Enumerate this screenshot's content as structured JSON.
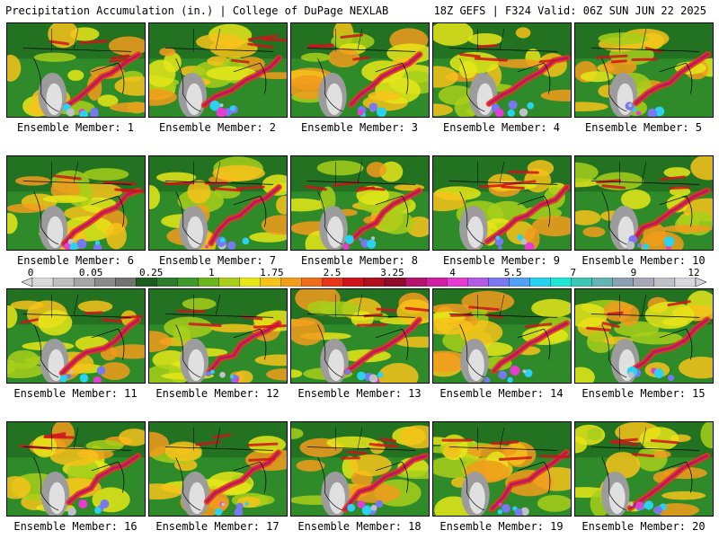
{
  "header": {
    "left_title": "Precipitation Accumulation (in.) | College of DuPage NEXLAB",
    "right_title": "18Z GEFS | F324 Valid: 06Z SUN JUN 22 2025"
  },
  "colorbar": {
    "tick_labels": [
      "0",
      "0.05",
      "0.25",
      "1",
      "1.75",
      "2.5",
      "3.25",
      "4",
      "5.5",
      "7",
      "9",
      "12"
    ],
    "colors": [
      "#d9d9d9",
      "#bfbfbf",
      "#a6a6a6",
      "#8c8c8c",
      "#737373",
      "#1e5c1e",
      "#2e7d2e",
      "#3f9a2a",
      "#6db51f",
      "#a7cf1a",
      "#e6e619",
      "#f7c21a",
      "#f29b1c",
      "#ee6d1a",
      "#e8351a",
      "#d0141c",
      "#b0101e",
      "#8e0c2a",
      "#b4146e",
      "#d21ea0",
      "#e63cd2",
      "#b45ae6",
      "#7878f0",
      "#50a0f5",
      "#28d2f0",
      "#1ee6d2",
      "#3cc8b4",
      "#64b4b4",
      "#8ca0b4",
      "#a8a8b8",
      "#c0c0c8",
      "#d8d8dc"
    ]
  },
  "panels": [
    {
      "label": "Ensemble Member: 1"
    },
    {
      "label": "Ensemble Member: 2"
    },
    {
      "label": "Ensemble Member: 3"
    },
    {
      "label": "Ensemble Member: 4"
    },
    {
      "label": "Ensemble Member: 5"
    },
    {
      "label": "Ensemble Member: 6"
    },
    {
      "label": "Ensemble Member: 7"
    },
    {
      "label": "Ensemble Member: 8"
    },
    {
      "label": "Ensemble Member: 9"
    },
    {
      "label": "Ensemble Member: 10"
    },
    {
      "label": "Ensemble Member: 11"
    },
    {
      "label": "Ensemble Member: 12"
    },
    {
      "label": "Ensemble Member: 13"
    },
    {
      "label": "Ensemble Member: 14"
    },
    {
      "label": "Ensemble Member: 15"
    },
    {
      "label": "Ensemble Member: 16"
    },
    {
      "label": "Ensemble Member: 17"
    },
    {
      "label": "Ensemble Member: 18"
    },
    {
      "label": "Ensemble Member: 19"
    },
    {
      "label": "Ensemble Member: 20"
    }
  ]
}
